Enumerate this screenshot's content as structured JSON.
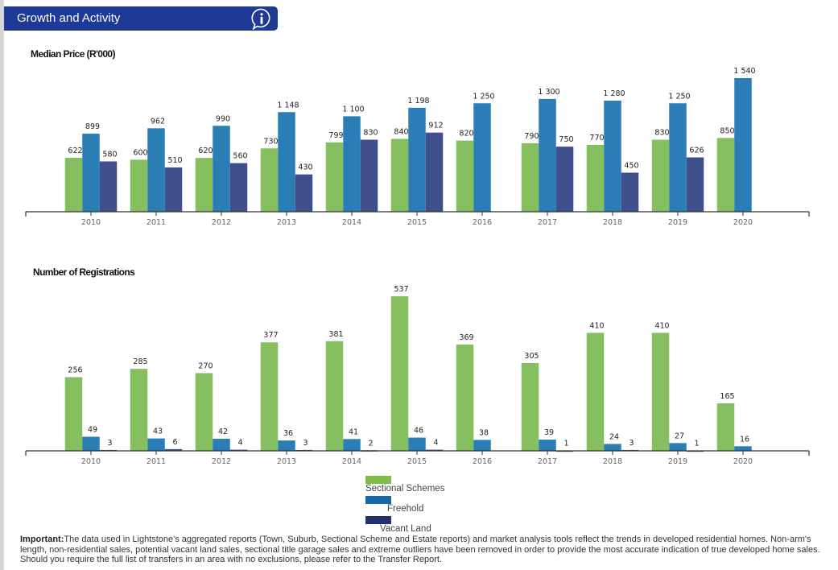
{
  "header": {
    "title": "Growth and Activity",
    "icon": "info-icon"
  },
  "legend": {
    "items": [
      {
        "label": "Sectional Schemes",
        "color": "#86bf60"
      },
      {
        "label": "Freehold",
        "color": "#2b7db5"
      },
      {
        "label": "Vacant Land",
        "color": "#3f4f8c"
      }
    ]
  },
  "footnote": {
    "bold": "Important:",
    "text": "The data used in Lightstone's aggregated reports (Town, Suburb, Sectional Scheme and Estate reports) and market analysis tools reflect the trends in developed residential homes. Non-arm's length, non-residential sales, potential vacant land sales, sectional title garage sales and extreme outliers have been removed in order to provide the most accurate indication of true developed home sales. Should you require the full list of transfers in an area with no exclusions, please refer to the Transfer Report."
  },
  "chart_data": [
    {
      "type": "bar",
      "title": "Median Price (R'000)",
      "xlabel": "",
      "ylabel": "",
      "categories": [
        "2010",
        "2011",
        "2012",
        "2013",
        "2014",
        "2015",
        "2016",
        "2017",
        "2018",
        "2019",
        "2020"
      ],
      "series": [
        {
          "name": "Sectional Schemes",
          "color": "#86bf60",
          "values": [
            622,
            600,
            620,
            730,
            799,
            840,
            820,
            790,
            770,
            830,
            850
          ]
        },
        {
          "name": "Freehold",
          "color": "#2b7db5",
          "values": [
            899,
            962,
            990,
            1148,
            1100,
            1198,
            1250,
            1300,
            1280,
            1250,
            1540
          ]
        },
        {
          "name": "Vacant Land",
          "color": "#3f4f8c",
          "values": [
            580,
            510,
            560,
            430,
            830,
            912,
            null,
            750,
            450,
            626,
            null
          ]
        }
      ],
      "value_labels": {
        "Sectional Schemes": [
          "622",
          "600",
          "620",
          "730",
          "799",
          "840",
          "820",
          "790",
          "770",
          "830",
          "850"
        ],
        "Freehold": [
          "899",
          "962",
          "990",
          "1 148",
          "1 100",
          "1 198",
          "1 250",
          "1 300",
          "1 280",
          "1 250",
          "1 540"
        ],
        "Vacant Land": [
          "580",
          "510",
          "560",
          "430",
          "830",
          "912",
          "",
          "750",
          "450",
          "626",
          ""
        ]
      },
      "ylim": [
        0,
        1540
      ],
      "grid": false,
      "legend": "bottom-center"
    },
    {
      "type": "bar",
      "title": "Number of Registrations",
      "xlabel": "",
      "ylabel": "",
      "categories": [
        "2010",
        "2011",
        "2012",
        "2013",
        "2014",
        "2015",
        "2016",
        "2017",
        "2018",
        "2019",
        "2020"
      ],
      "series": [
        {
          "name": "Sectional Schemes",
          "color": "#86bf60",
          "values": [
            256,
            285,
            270,
            377,
            381,
            537,
            369,
            305,
            410,
            410,
            165
          ]
        },
        {
          "name": "Freehold",
          "color": "#2b7db5",
          "values": [
            49,
            43,
            42,
            36,
            41,
            46,
            38,
            39,
            24,
            27,
            16
          ]
        },
        {
          "name": "Vacant Land",
          "color": "#3f4f8c",
          "values": [
            3,
            6,
            4,
            3,
            2,
            4,
            null,
            1,
            3,
            1,
            null
          ]
        }
      ],
      "value_labels": {
        "Sectional Schemes": [
          "256",
          "285",
          "270",
          "377",
          "381",
          "537",
          "369",
          "305",
          "410",
          "410",
          "165"
        ],
        "Freehold": [
          "49",
          "43",
          "42",
          "36",
          "41",
          "46",
          "38",
          "39",
          "24",
          "27",
          "16"
        ],
        "Vacant Land": [
          "3",
          "6",
          "4",
          "3",
          "2",
          "4",
          "",
          "1",
          "3",
          "1",
          ""
        ]
      },
      "ylim": [
        0,
        537
      ],
      "grid": false,
      "legend": "bottom-center"
    }
  ]
}
